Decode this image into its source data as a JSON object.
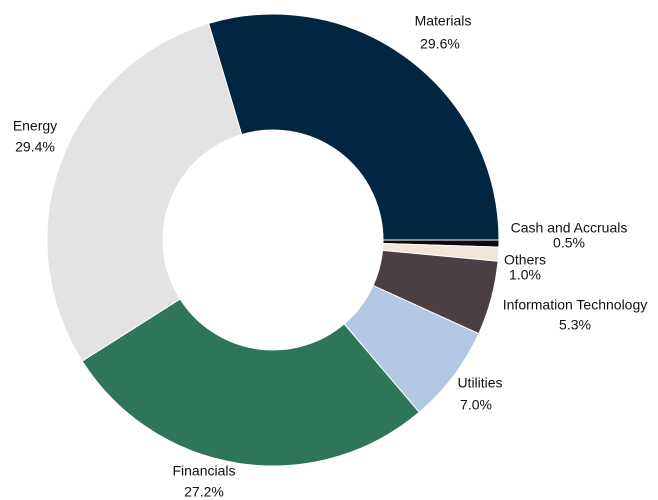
{
  "chart_data": {
    "type": "pie",
    "categories": [
      "Materials",
      "Cash and Accruals",
      "Others",
      "Information Technology",
      "Utilities",
      "Financials",
      "Energy"
    ],
    "values": [
      29.6,
      0.5,
      1.0,
      5.3,
      7.0,
      27.2,
      29.4
    ],
    "value_labels": [
      "29.6%",
      "0.5%",
      "1.0%",
      "5.3%",
      "7.0%",
      "27.2%",
      "29.4%"
    ],
    "colors": [
      "#002642",
      "#0b0b0b",
      "#efe6d8",
      "#4a3f45",
      "#b2c7e1",
      "#2f7559",
      "#e3e3e3"
    ],
    "donut": true
  }
}
